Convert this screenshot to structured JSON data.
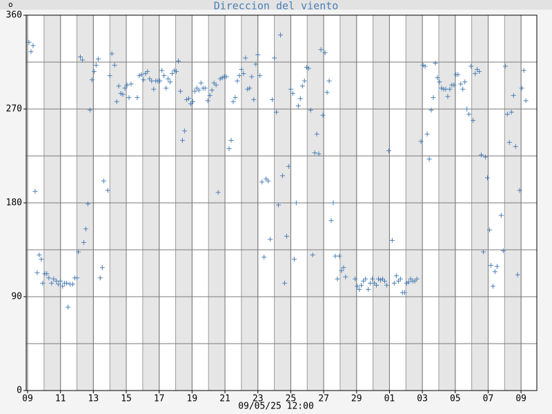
{
  "chart_data": {
    "type": "scatter",
    "title": "Direccion del viento",
    "y_label": "o",
    "x_label": "09/05/25 12:00",
    "color": "#4a7fb5",
    "marker": "+",
    "grid": true,
    "xlim": [
      -2,
      743
    ],
    "ylim": [
      0,
      360
    ],
    "yticks": [
      0,
      90,
      180,
      270,
      360
    ],
    "yminorticks": [
      45,
      135,
      225,
      315
    ],
    "xticks": [
      {
        "value": 0,
        "label": "09"
      },
      {
        "value": 48,
        "label": "11"
      },
      {
        "value": 96,
        "label": "13"
      },
      {
        "value": 144,
        "label": "15"
      },
      {
        "value": 192,
        "label": "17"
      },
      {
        "value": 240,
        "label": "19"
      },
      {
        "value": 288,
        "label": "21"
      },
      {
        "value": 336,
        "label": "23"
      },
      {
        "value": 384,
        "label": "25"
      },
      {
        "value": 432,
        "label": "27"
      },
      {
        "value": 480,
        "label": "29"
      },
      {
        "value": 528,
        "label": "01"
      },
      {
        "value": 576,
        "label": "03"
      },
      {
        "value": 624,
        "label": "05"
      },
      {
        "value": 672,
        "label": "07"
      },
      {
        "value": 720,
        "label": "09"
      }
    ],
    "x": [
      2,
      5,
      8,
      11,
      14,
      17,
      20,
      22,
      25,
      28,
      31,
      35,
      38,
      42,
      45,
      48,
      51,
      54,
      57,
      59,
      62,
      66,
      69,
      72,
      74,
      77,
      80,
      82,
      85,
      88,
      91,
      94,
      97,
      100,
      103,
      106,
      109,
      111,
      117,
      120,
      123,
      127,
      130,
      133,
      136,
      139,
      142,
      145,
      148,
      151,
      160,
      163,
      166,
      169,
      172,
      175,
      178,
      181,
      184,
      187,
      190,
      193,
      196,
      199,
      202,
      205,
      208,
      211,
      214,
      217,
      220,
      223,
      226,
      229,
      232,
      235,
      238,
      241,
      244,
      247,
      250,
      253,
      256,
      259,
      263,
      266,
      269,
      272,
      275,
      278,
      281,
      284,
      287,
      290,
      294,
      297,
      300,
      303,
      306,
      309,
      312,
      315,
      318,
      321,
      324,
      327,
      330,
      333,
      336,
      339,
      342,
      345,
      348,
      351,
      354,
      357,
      360,
      363,
      366,
      369,
      372,
      375,
      378,
      381,
      384,
      387,
      389,
      392,
      395,
      398,
      401,
      404,
      407,
      410,
      413,
      416,
      419,
      422,
      425,
      428,
      431,
      434,
      437,
      440,
      443,
      446,
      449,
      452,
      455,
      458,
      461,
      464,
      478,
      481,
      484,
      487,
      490,
      493,
      497,
      500,
      503,
      506,
      509,
      512,
      515,
      518,
      521,
      524,
      527,
      532,
      535,
      538,
      541,
      544,
      547,
      550,
      553,
      556,
      559,
      562,
      565,
      568,
      574,
      577,
      580,
      583,
      586,
      589,
      592,
      595,
      598,
      601,
      604,
      607,
      610,
      613,
      616,
      619,
      622,
      625,
      628,
      632,
      635,
      638,
      641,
      644,
      647,
      650,
      653,
      656,
      659,
      662,
      665,
      668,
      671,
      674,
      676,
      679,
      682,
      685,
      691,
      694,
      697,
      700,
      703,
      706,
      709,
      712,
      715,
      718,
      721,
      724,
      727
    ],
    "values": [
      334,
      325,
      331,
      191,
      113,
      130,
      126,
      103,
      112,
      112,
      108,
      103,
      107,
      105,
      102,
      105,
      100,
      103,
      103,
      80,
      102,
      102,
      108,
      108,
      133,
      320,
      317,
      142,
      155,
      179,
      269,
      298,
      306,
      312,
      318,
      108,
      118,
      201,
      192,
      302,
      323,
      312,
      277,
      292,
      285,
      284,
      290,
      293,
      281,
      294,
      281,
      302,
      303,
      298,
      304,
      306,
      299,
      297,
      289,
      297,
      297,
      297,
      307,
      302,
      290,
      299,
      296,
      304,
      307,
      306,
      316,
      287,
      240,
      249,
      279,
      280,
      275,
      277,
      287,
      290,
      288,
      295,
      290,
      290,
      278,
      283,
      288,
      295,
      293,
      190,
      299,
      300,
      301,
      301,
      232,
      240,
      277,
      281,
      297,
      302,
      308,
      304,
      319,
      289,
      290,
      301,
      279,
      313,
      322,
      302,
      200,
      128,
      203,
      201,
      145,
      279,
      319,
      267,
      178,
      341,
      206,
      103,
      148,
      215,
      289,
      285,
      126,
      180,
      273,
      280,
      292,
      297,
      310,
      309,
      269,
      130,
      228,
      246,
      227,
      327,
      264,
      324,
      286,
      297,
      163,
      180,
      129,
      107,
      129,
      115,
      118,
      109,
      107,
      100,
      97,
      101,
      105,
      107,
      97,
      103,
      107,
      103,
      101,
      107,
      106,
      107,
      105,
      101,
      230,
      144,
      103,
      110,
      105,
      107,
      94,
      94,
      103,
      104,
      107,
      105,
      105,
      107,
      239,
      312,
      311,
      246,
      222,
      269,
      281,
      314,
      300,
      296,
      290,
      289,
      289,
      282,
      289,
      293,
      293,
      303,
      303,
      294,
      289,
      296,
      270,
      265,
      311,
      259,
      304,
      308,
      306,
      226,
      133,
      224,
      204,
      154,
      120,
      100,
      114,
      119,
      168,
      134,
      311,
      265,
      238,
      267,
      283,
      234,
      111,
      192,
      290,
      307,
      278
    ]
  }
}
